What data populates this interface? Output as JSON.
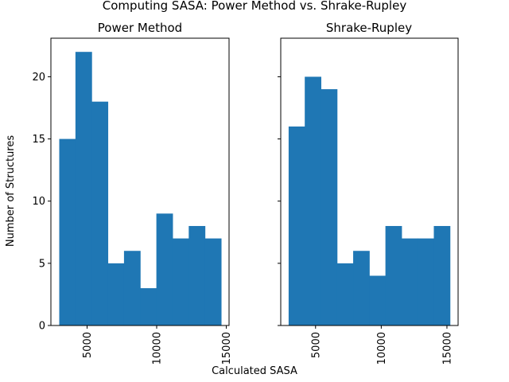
{
  "chart_data": {
    "type": "bar",
    "title": "Computing SASA: Power Method vs. Shrake-Rupley",
    "xlabel": "Calculated SASA",
    "ylabel": "Number of Structures",
    "sharey": true,
    "ylim": [
      0,
      23.1
    ],
    "yticks": [
      0,
      5,
      10,
      15,
      20
    ],
    "xtick_rotation": "vertical",
    "bar_color": "#1f77b4",
    "panels": [
      {
        "title": "Power Method",
        "xlim": [
          2400,
          15200
        ],
        "xticks": [
          5000,
          10000,
          15000
        ],
        "bin_edges": [
          3000,
          4163,
          5326,
          6489,
          7652,
          8815,
          9978,
          11141,
          12304,
          13467,
          14630
        ],
        "counts": [
          15,
          22,
          18,
          5,
          6,
          3,
          9,
          7,
          8,
          7
        ]
      },
      {
        "title": "Shrake-Rupley",
        "xlim": [
          2350,
          15850
        ],
        "xticks": [
          5000,
          10000,
          15000
        ],
        "bin_edges": [
          2950,
          4178,
          5406,
          6634,
          7862,
          9090,
          10318,
          11546,
          12774,
          14002,
          15230
        ],
        "counts": [
          16,
          20,
          19,
          5,
          6,
          4,
          8,
          7,
          7,
          8
        ]
      }
    ]
  }
}
